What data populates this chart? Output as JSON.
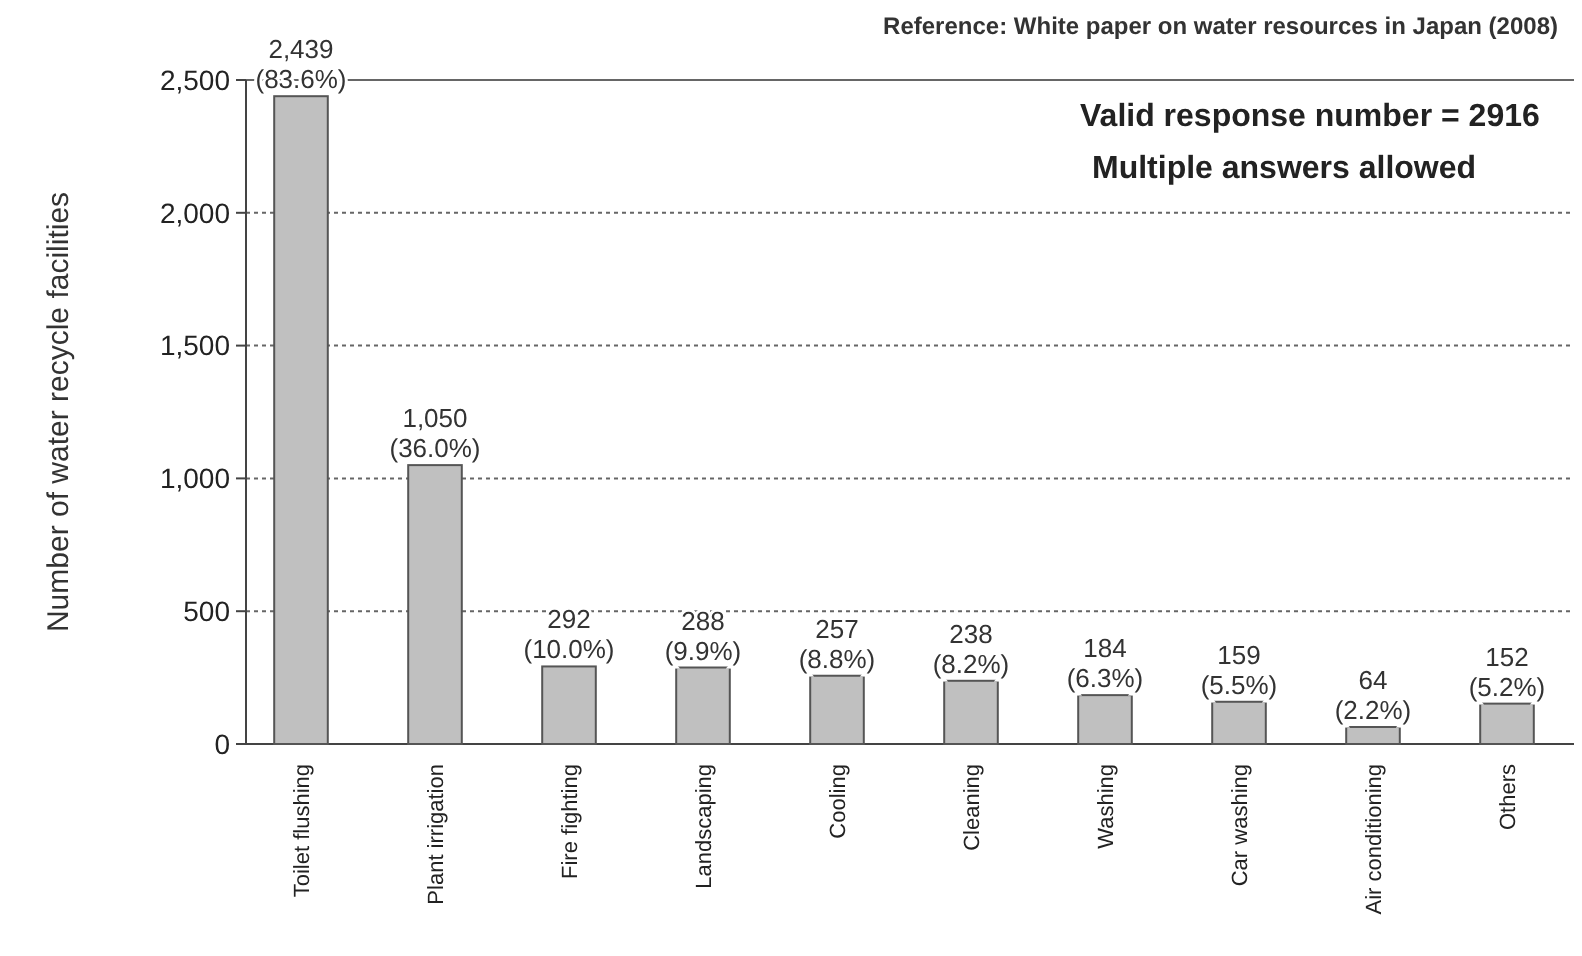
{
  "chart_data": {
    "type": "bar",
    "ylabel": "Number of water recycle facilities",
    "categories": [
      "Toilet flushing",
      "Plant irrigation",
      "Fire fighting",
      "Landscaping",
      "Cooling",
      "Cleaning",
      "Washing",
      "Car washing",
      "Air conditioning",
      "Others"
    ],
    "values": [
      2439,
      1050,
      292,
      288,
      257,
      238,
      184,
      159,
      64,
      152
    ],
    "value_labels": [
      "2,439\n(83.6%)",
      "1,050\n(36.0%)",
      "292\n(10.0%)",
      "288\n(9.9%)",
      "257\n(8.8%)",
      "238\n(8.2%)",
      "184\n(6.3%)",
      "159\n(5.5%)",
      "64\n(2.2%)",
      "152\n(5.2%)"
    ],
    "color": "#c0c0c0",
    "ylim": [
      0,
      2500
    ],
    "yticks": [
      0,
      500,
      {
        "value": 1000,
        "label": "1,000"
      },
      {
        "value": 1500,
        "label": "1,500"
      },
      {
        "value": 2000,
        "label": "2,000"
      },
      {
        "value": 2500,
        "label": "2,500"
      }
    ],
    "grid": "y",
    "annotations": [
      "Reference: White paper on water resources  in Japan (2008)",
      "Valid response number = 2916",
      "Multiple answers allowed"
    ]
  }
}
